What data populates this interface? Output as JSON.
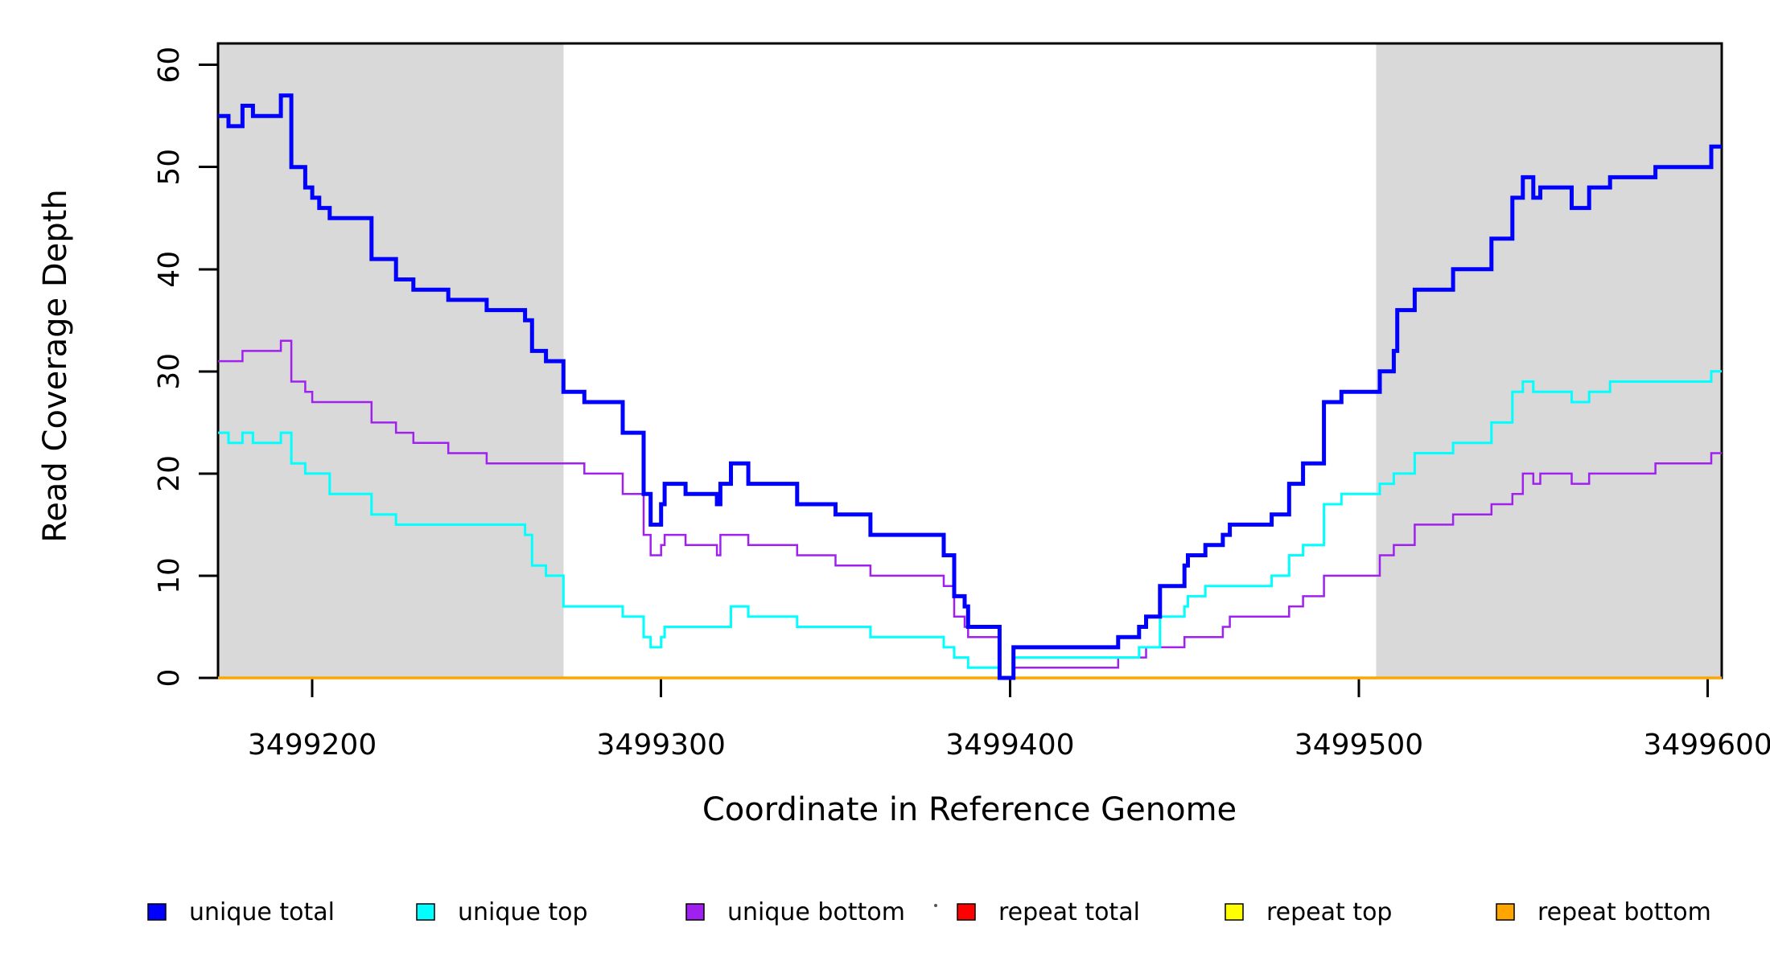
{
  "chart_data": {
    "type": "line",
    "subtype": "step-coverage-plot",
    "title": "",
    "xlabel": "Coordinate in Reference Genome",
    "ylabel": "Read Coverage Depth",
    "xlim": [
      3499173,
      3499604
    ],
    "ylim": [
      0,
      62.1
    ],
    "x_ticks": [
      3499200,
      3499300,
      3499400,
      3499500,
      3499600
    ],
    "y_ticks": [
      0,
      10,
      20,
      30,
      40,
      50,
      60
    ],
    "grid": "off",
    "legend_position": "bottom",
    "background_color": "#ffffff",
    "shaded_region_color": "#d9d9d9",
    "shaded_regions": [
      {
        "from": 3499173,
        "to": 3499272
      },
      {
        "from": 3499505,
        "to": 3499604
      }
    ],
    "series": [
      {
        "name": "repeat total",
        "color": "#ff0000",
        "width": 2,
        "points": [
          [
            3499173,
            0
          ]
        ]
      },
      {
        "name": "repeat top",
        "color": "#ffff00",
        "width": 2,
        "points": [
          [
            3499173,
            0
          ]
        ]
      },
      {
        "name": "repeat bottom",
        "color": "#ffa500",
        "width": 3.5,
        "points": [
          [
            3499173,
            0
          ]
        ]
      },
      {
        "name": "unique bottom",
        "color": "#a020f0",
        "width": 2.5,
        "points": [
          [
            3499173,
            31
          ],
          [
            3499180,
            32
          ],
          [
            3499191,
            33
          ],
          [
            3499194,
            29
          ],
          [
            3499198,
            28
          ],
          [
            3499200,
            27
          ],
          [
            3499217,
            25
          ],
          [
            3499224,
            24
          ],
          [
            3499229,
            23
          ],
          [
            3499239,
            22
          ],
          [
            3499250,
            21
          ],
          [
            3499278,
            20
          ],
          [
            3499289,
            18
          ],
          [
            3499295,
            14
          ],
          [
            3499297,
            12
          ],
          [
            3499300,
            13
          ],
          [
            3499301,
            14
          ],
          [
            3499307,
            13
          ],
          [
            3499316,
            12
          ],
          [
            3499317,
            14
          ],
          [
            3499325,
            13
          ],
          [
            3499339,
            12
          ],
          [
            3499350,
            11
          ],
          [
            3499360,
            10
          ],
          [
            3499381,
            9
          ],
          [
            3499384,
            6
          ],
          [
            3499387,
            5
          ],
          [
            3499388,
            4
          ],
          [
            3499397,
            0
          ],
          [
            3499401,
            1
          ],
          [
            3499431,
            2
          ],
          [
            3499439,
            3
          ],
          [
            3499450,
            4
          ],
          [
            3499461,
            5
          ],
          [
            3499463,
            6
          ],
          [
            3499480,
            7
          ],
          [
            3499484,
            8
          ],
          [
            3499490,
            10
          ],
          [
            3499506,
            12
          ],
          [
            3499510,
            13
          ],
          [
            3499516,
            15
          ],
          [
            3499527,
            16
          ],
          [
            3499538,
            17
          ],
          [
            3499544,
            18
          ],
          [
            3499547,
            20
          ],
          [
            3499550,
            19
          ],
          [
            3499552,
            20
          ],
          [
            3499561,
            19
          ],
          [
            3499566,
            20
          ],
          [
            3499585,
            21
          ],
          [
            3499601,
            22
          ]
        ]
      },
      {
        "name": "unique top",
        "color": "#00ffff",
        "width": 3,
        "points": [
          [
            3499173,
            24
          ],
          [
            3499176,
            23
          ],
          [
            3499180,
            24
          ],
          [
            3499183,
            23
          ],
          [
            3499191,
            24
          ],
          [
            3499194,
            21
          ],
          [
            3499198,
            20
          ],
          [
            3499205,
            18
          ],
          [
            3499217,
            16
          ],
          [
            3499224,
            15
          ],
          [
            3499261,
            14
          ],
          [
            3499263,
            11
          ],
          [
            3499267,
            10
          ],
          [
            3499272,
            7
          ],
          [
            3499289,
            6
          ],
          [
            3499295,
            4
          ],
          [
            3499297,
            3
          ],
          [
            3499300,
            4
          ],
          [
            3499301,
            5
          ],
          [
            3499320,
            7
          ],
          [
            3499325,
            6
          ],
          [
            3499339,
            5
          ],
          [
            3499360,
            4
          ],
          [
            3499381,
            3
          ],
          [
            3499384,
            2
          ],
          [
            3499388,
            1
          ],
          [
            3499397,
            0
          ],
          [
            3499401,
            2
          ],
          [
            3499437,
            3
          ],
          [
            3499443,
            6
          ],
          [
            3499450,
            7
          ],
          [
            3499451,
            8
          ],
          [
            3499456,
            9
          ],
          [
            3499475,
            10
          ],
          [
            3499480,
            12
          ],
          [
            3499484,
            13
          ],
          [
            3499490,
            17
          ],
          [
            3499495,
            18
          ],
          [
            3499506,
            19
          ],
          [
            3499510,
            20
          ],
          [
            3499516,
            22
          ],
          [
            3499527,
            23
          ],
          [
            3499538,
            25
          ],
          [
            3499544,
            28
          ],
          [
            3499547,
            29
          ],
          [
            3499550,
            28
          ],
          [
            3499561,
            27
          ],
          [
            3499566,
            28
          ],
          [
            3499572,
            29
          ],
          [
            3499601,
            30
          ]
        ]
      },
      {
        "name": "unique total",
        "color": "#0000ff",
        "width": 5,
        "points": [
          [
            3499173,
            55
          ],
          [
            3499176,
            54
          ],
          [
            3499180,
            56
          ],
          [
            3499183,
            55
          ],
          [
            3499191,
            57
          ],
          [
            3499194,
            50
          ],
          [
            3499198,
            48
          ],
          [
            3499200,
            47
          ],
          [
            3499202,
            46
          ],
          [
            3499205,
            45
          ],
          [
            3499217,
            41
          ],
          [
            3499224,
            39
          ],
          [
            3499229,
            38
          ],
          [
            3499239,
            37
          ],
          [
            3499250,
            36
          ],
          [
            3499261,
            35
          ],
          [
            3499263,
            32
          ],
          [
            3499267,
            31
          ],
          [
            3499272,
            28
          ],
          [
            3499278,
            27
          ],
          [
            3499289,
            24
          ],
          [
            3499295,
            18
          ],
          [
            3499297,
            15
          ],
          [
            3499300,
            17
          ],
          [
            3499301,
            19
          ],
          [
            3499307,
            18
          ],
          [
            3499316,
            17
          ],
          [
            3499317,
            19
          ],
          [
            3499320,
            21
          ],
          [
            3499325,
            19
          ],
          [
            3499339,
            17
          ],
          [
            3499350,
            16
          ],
          [
            3499360,
            14
          ],
          [
            3499381,
            12
          ],
          [
            3499384,
            8
          ],
          [
            3499387,
            7
          ],
          [
            3499388,
            5
          ],
          [
            3499397,
            0
          ],
          [
            3499401,
            3
          ],
          [
            3499431,
            4
          ],
          [
            3499437,
            5
          ],
          [
            3499439,
            6
          ],
          [
            3499443,
            9
          ],
          [
            3499450,
            11
          ],
          [
            3499451,
            12
          ],
          [
            3499456,
            13
          ],
          [
            3499461,
            14
          ],
          [
            3499463,
            15
          ],
          [
            3499475,
            16
          ],
          [
            3499480,
            19
          ],
          [
            3499484,
            21
          ],
          [
            3499490,
            27
          ],
          [
            3499495,
            28
          ],
          [
            3499506,
            30
          ],
          [
            3499510,
            32
          ],
          [
            3499511,
            36
          ],
          [
            3499516,
            38
          ],
          [
            3499527,
            40
          ],
          [
            3499538,
            43
          ],
          [
            3499544,
            47
          ],
          [
            3499547,
            49
          ],
          [
            3499550,
            47
          ],
          [
            3499552,
            48
          ],
          [
            3499561,
            46
          ],
          [
            3499566,
            48
          ],
          [
            3499572,
            49
          ],
          [
            3499585,
            50
          ],
          [
            3499601,
            52
          ]
        ]
      }
    ],
    "legend": [
      {
        "label": "unique total",
        "color": "#0000ff"
      },
      {
        "label": "unique top",
        "color": "#00ffff"
      },
      {
        "label": "unique bottom",
        "color": "#a020f0"
      },
      {
        "label": "repeat total",
        "color": "#ff0000"
      },
      {
        "label": "repeat top",
        "color": "#ffff00"
      },
      {
        "label": "repeat bottom",
        "color": "#ffa500"
      }
    ]
  },
  "layout_text": {
    "x_axis_title": "Coordinate in Reference Genome",
    "y_axis_title": "Read Coverage Depth"
  }
}
